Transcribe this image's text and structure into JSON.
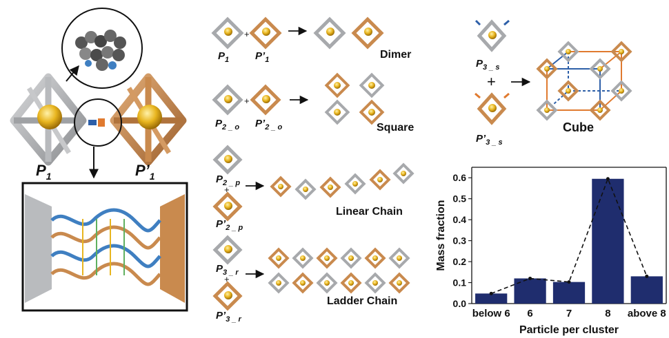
{
  "colors": {
    "grey_particle": "#a7a9ac",
    "orange_particle": "#c98a4e",
    "gold_core": "#e8b51f",
    "blue_tag": "#2d5fa8",
    "orange_tag": "#e07a2f",
    "dna_blue": "#3f7fc1",
    "dna_orange": "#c98a4e",
    "bar_fill": "#1f2d6e"
  },
  "left_panel": {
    "p1_label": "P",
    "p1_sub": "1",
    "p1prime_label": "P’",
    "p1prime_sub": "1"
  },
  "rows": [
    {
      "left_label": "P",
      "left_sub": "1",
      "right_label": "P’",
      "right_sub": "1",
      "plus": "+",
      "product": "Dimer"
    },
    {
      "left_label": "P",
      "left_sub": "2 _ o",
      "right_label": "P’",
      "right_sub": "2 _ o",
      "plus": "+",
      "product": "Square"
    },
    {
      "left_label": "P",
      "left_sub": "2 _ p",
      "right_label": "P’",
      "right_sub": "2 _ p",
      "plus": "+",
      "product": "Linear Chain"
    },
    {
      "left_label": "P",
      "left_sub": "3 _ r",
      "right_label": "P’",
      "right_sub": "3 _ r",
      "plus": "+",
      "product": "Ladder Chain"
    },
    {
      "left_label": "P",
      "left_sub": "3 _ s",
      "right_label": "P’",
      "right_sub": "3 _ s",
      "plus": "+",
      "product": "Cube"
    }
  ],
  "chart_data": {
    "type": "bar",
    "categories": [
      "below 6",
      "6",
      "7",
      "8",
      "above 8"
    ],
    "values": [
      0.048,
      0.12,
      0.103,
      0.595,
      0.13
    ],
    "line_overlay": true,
    "xlabel": "Particle per cluster",
    "ylabel": "Mass fraction",
    "ylim": [
      0,
      0.65
    ],
    "yticks": [
      "0.0",
      "0.1",
      "0.2",
      "0.3",
      "0.4",
      "0.5",
      "0.6"
    ],
    "ytick_values": [
      0,
      0.1,
      0.2,
      0.3,
      0.4,
      0.5,
      0.6
    ],
    "grid": false
  }
}
